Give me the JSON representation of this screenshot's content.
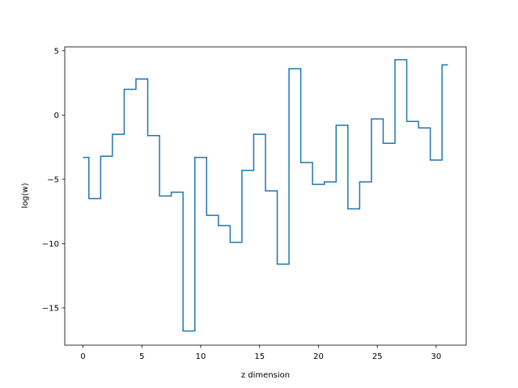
{
  "chart_data": {
    "type": "line",
    "drawstyle": "steps-mid",
    "title": "",
    "xlabel": "z dimension",
    "ylabel": "log(w)",
    "xlim": [
      -1.55,
      32.55
    ],
    "ylim": [
      -17.9,
      5.3
    ],
    "xticks": [
      0,
      5,
      10,
      15,
      20,
      25,
      30
    ],
    "yticks": [
      5,
      0,
      -5,
      -10,
      -15
    ],
    "ytick_labels": [
      "5",
      "0",
      "−5",
      "−10",
      "−15"
    ],
    "grid": false,
    "legend": "none",
    "series": [
      {
        "color": "#1f77b4",
        "x": [
          0,
          1,
          2,
          3,
          4,
          5,
          6,
          7,
          8,
          9,
          10,
          11,
          12,
          13,
          14,
          15,
          16,
          17,
          18,
          19,
          20,
          21,
          22,
          23,
          24,
          25,
          26,
          27,
          28,
          29,
          30,
          31
        ],
        "values": [
          -3.3,
          -6.5,
          -3.2,
          -1.5,
          2.0,
          2.8,
          -1.6,
          -6.3,
          -6.0,
          -16.8,
          -3.3,
          -7.8,
          -8.6,
          -9.9,
          -4.3,
          -1.5,
          -5.9,
          -11.6,
          3.6,
          -3.7,
          -5.4,
          -5.2,
          -0.8,
          -7.3,
          -5.2,
          -0.3,
          -2.2,
          4.3,
          -0.5,
          -1.0,
          -3.5,
          3.9
        ]
      }
    ]
  }
}
